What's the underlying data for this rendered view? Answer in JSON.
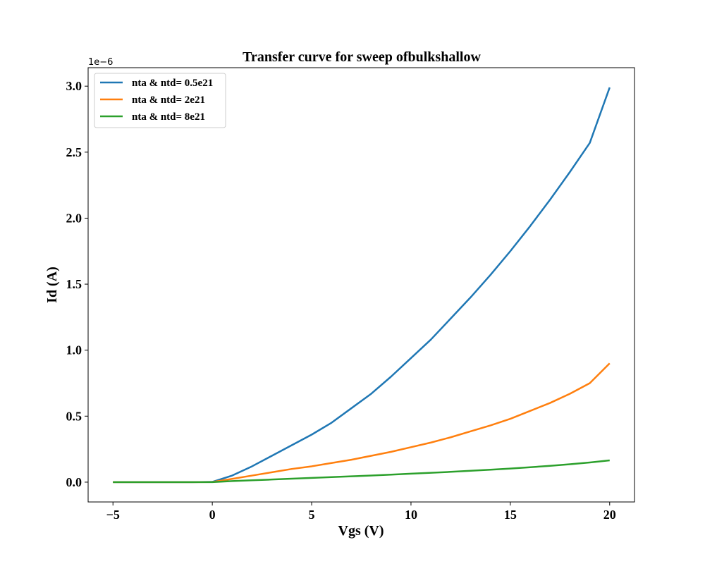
{
  "chart_data": {
    "type": "line",
    "title": "Transfer curve for sweep ofbulkshallow",
    "xlabel": "Vgs (V)",
    "ylabel": "Id (A)",
    "y_scale_label": "1e−6",
    "y_scale_factor": 1e-06,
    "xlim": [
      -6.25,
      21.25
    ],
    "ylim": [
      -0.15,
      3.14
    ],
    "x_ticks": [
      -5,
      0,
      5,
      10,
      15,
      20
    ],
    "x_tick_labels": [
      "−5",
      "0",
      "5",
      "10",
      "15",
      "20"
    ],
    "y_ticks": [
      0.0,
      0.5,
      1.0,
      1.5,
      2.0,
      2.5,
      3.0
    ],
    "y_tick_labels": [
      "0.0",
      "0.5",
      "1.0",
      "1.5",
      "2.0",
      "2.5",
      "3.0"
    ],
    "grid": false,
    "legend_position": "upper left",
    "x": [
      -5,
      -4,
      -3,
      -2,
      -1,
      0,
      1,
      2,
      3,
      4,
      5,
      6,
      7,
      8,
      9,
      10,
      11,
      12,
      13,
      14,
      15,
      16,
      17,
      18,
      19,
      20
    ],
    "series": [
      {
        "name": "nta & ntd= 0.5e21",
        "color": "#1f77b4",
        "values": [
          0,
          0,
          0,
          0,
          0,
          0.002,
          0.05,
          0.12,
          0.2,
          0.28,
          0.36,
          0.45,
          0.56,
          0.67,
          0.8,
          0.94,
          1.08,
          1.24,
          1.4,
          1.57,
          1.75,
          1.94,
          2.14,
          2.35,
          2.57,
          2.99
        ]
      },
      {
        "name": "nta & ntd= 2e21",
        "color": "#ff7f0e",
        "values": [
          0,
          0,
          0,
          0,
          0,
          0.001,
          0.025,
          0.05,
          0.075,
          0.1,
          0.12,
          0.145,
          0.17,
          0.2,
          0.23,
          0.265,
          0.3,
          0.34,
          0.385,
          0.43,
          0.48,
          0.54,
          0.6,
          0.67,
          0.75,
          0.9
        ]
      },
      {
        "name": "nta & ntd= 8e21",
        "color": "#2ca02c",
        "values": [
          0,
          0,
          0,
          0,
          0,
          0.0005,
          0.008,
          0.014,
          0.02,
          0.026,
          0.032,
          0.038,
          0.044,
          0.05,
          0.057,
          0.064,
          0.071,
          0.078,
          0.086,
          0.094,
          0.103,
          0.113,
          0.124,
          0.136,
          0.149,
          0.165
        ]
      }
    ]
  }
}
